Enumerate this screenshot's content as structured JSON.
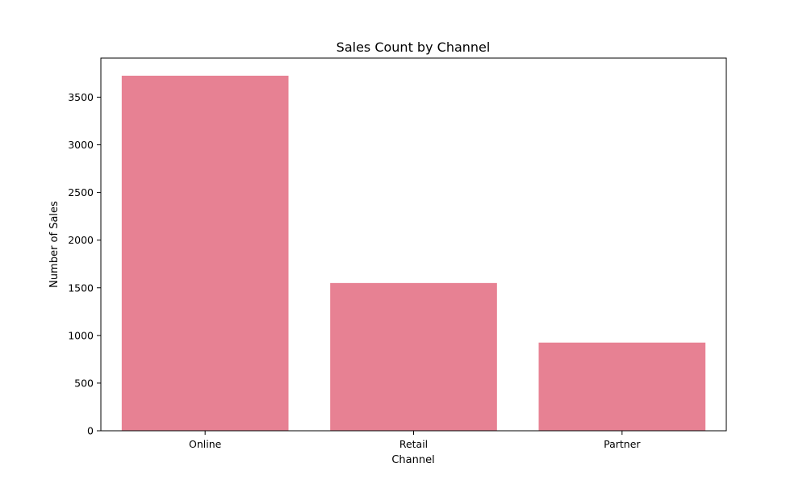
{
  "chart_data": {
    "type": "bar",
    "title": "Sales Count by Channel",
    "xlabel": "Channel",
    "ylabel": "Number of Sales",
    "categories": [
      "Online",
      "Retail",
      "Partner"
    ],
    "values": [
      3725,
      1550,
      925
    ],
    "ylim": [
      0,
      3910
    ],
    "yticks": [
      0,
      500,
      1000,
      1500,
      2000,
      2500,
      3000,
      3500
    ],
    "ytick_labels": [
      "0",
      "500",
      "1000",
      "1500",
      "2000",
      "2500",
      "3000",
      "3500"
    ],
    "bar_color": "#e78193",
    "grid": false,
    "legend": false
  }
}
